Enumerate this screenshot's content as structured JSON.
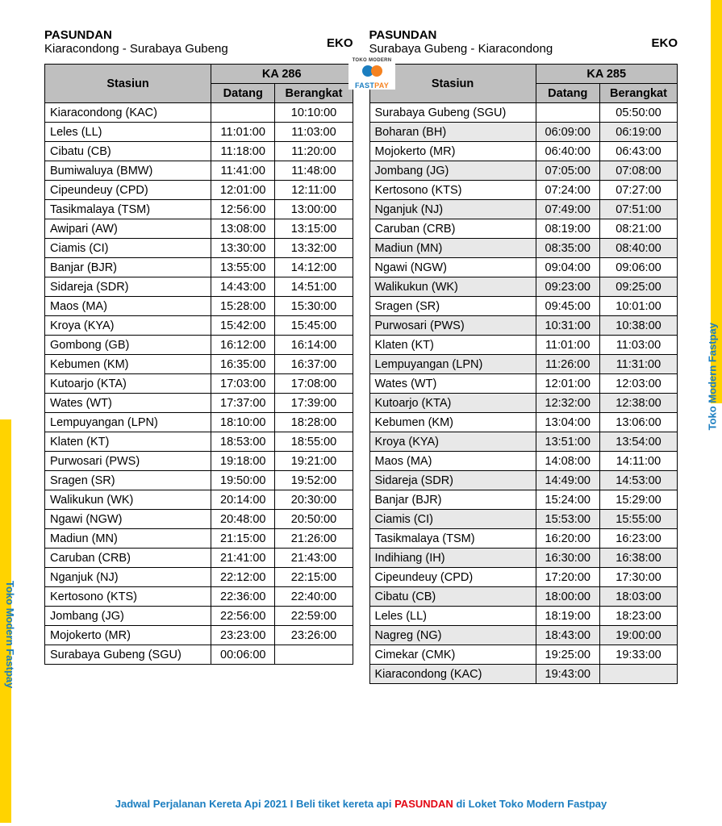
{
  "side_label": "Toko Modern Fastpay",
  "colors": {
    "accent_yellow": "#ffd300",
    "brand_blue": "#1b7ec0",
    "brand_orange": "#f58220",
    "brand_red": "#e30613",
    "header_gray": "#bfbfbf",
    "alt_row": "#e8e8e8",
    "border": "#000000",
    "text": "#000000",
    "background": "#ffffff"
  },
  "logo": {
    "top_text": "TOKO MODERN",
    "name_a": "FAST",
    "name_b": "PAY"
  },
  "headers": {
    "station": "Stasiun",
    "arrive": "Datang",
    "depart": "Berangkat"
  },
  "left": {
    "train_name": "PASUNDAN",
    "route": "Kiaracondong - Surabaya Gubeng",
    "class": "EKO",
    "train_number": "KA 286",
    "rows": [
      {
        "s": "Kiaracondong (KAC)",
        "a": "",
        "d": "10:10:00"
      },
      {
        "s": "Leles (LL)",
        "a": "11:01:00",
        "d": "11:03:00"
      },
      {
        "s": "Cibatu (CB)",
        "a": "11:18:00",
        "d": "11:20:00"
      },
      {
        "s": "Bumiwaluya (BMW)",
        "a": "11:41:00",
        "d": "11:48:00"
      },
      {
        "s": "Cipeundeuy (CPD)",
        "a": "12:01:00",
        "d": "12:11:00"
      },
      {
        "s": "Tasikmalaya (TSM)",
        "a": "12:56:00",
        "d": "13:00:00"
      },
      {
        "s": "Awipari (AW)",
        "a": "13:08:00",
        "d": "13:15:00"
      },
      {
        "s": "Ciamis (CI)",
        "a": "13:30:00",
        "d": "13:32:00"
      },
      {
        "s": "Banjar (BJR)",
        "a": "13:55:00",
        "d": "14:12:00"
      },
      {
        "s": "Sidareja (SDR)",
        "a": "14:43:00",
        "d": "14:51:00"
      },
      {
        "s": "Maos (MA)",
        "a": "15:28:00",
        "d": "15:30:00"
      },
      {
        "s": "Kroya (KYA)",
        "a": "15:42:00",
        "d": "15:45:00"
      },
      {
        "s": "Gombong (GB)",
        "a": "16:12:00",
        "d": "16:14:00"
      },
      {
        "s": "Kebumen (KM)",
        "a": "16:35:00",
        "d": "16:37:00"
      },
      {
        "s": "Kutoarjo (KTA)",
        "a": "17:03:00",
        "d": "17:08:00"
      },
      {
        "s": "Wates (WT)",
        "a": "17:37:00",
        "d": "17:39:00"
      },
      {
        "s": "Lempuyangan (LPN)",
        "a": "18:10:00",
        "d": "18:28:00"
      },
      {
        "s": "Klaten (KT)",
        "a": "18:53:00",
        "d": "18:55:00"
      },
      {
        "s": "Purwosari (PWS)",
        "a": "19:18:00",
        "d": "19:21:00"
      },
      {
        "s": "Sragen (SR)",
        "a": "19:50:00",
        "d": "19:52:00"
      },
      {
        "s": "Walikukun (WK)",
        "a": "20:14:00",
        "d": "20:30:00"
      },
      {
        "s": "Ngawi (NGW)",
        "a": "20:48:00",
        "d": "20:50:00"
      },
      {
        "s": "Madiun (MN)",
        "a": "21:15:00",
        "d": "21:26:00"
      },
      {
        "s": "Caruban (CRB)",
        "a": "21:41:00",
        "d": "21:43:00"
      },
      {
        "s": "Nganjuk (NJ)",
        "a": "22:12:00",
        "d": "22:15:00"
      },
      {
        "s": "Kertosono (KTS)",
        "a": "22:36:00",
        "d": "22:40:00"
      },
      {
        "s": "Jombang (JG)",
        "a": "22:56:00",
        "d": "22:59:00"
      },
      {
        "s": "Mojokerto (MR)",
        "a": "23:23:00",
        "d": "23:26:00"
      },
      {
        "s": "Surabaya Gubeng (SGU)",
        "a": "00:06:00",
        "d": ""
      }
    ]
  },
  "right": {
    "train_name": "PASUNDAN",
    "route": "Surabaya Gubeng - Kiaracondong",
    "class": "EKO",
    "train_number": "KA 285",
    "rows": [
      {
        "s": "Surabaya Gubeng (SGU)",
        "a": "",
        "d": "05:50:00"
      },
      {
        "s": "Boharan (BH)",
        "a": "06:09:00",
        "d": "06:19:00"
      },
      {
        "s": "Mojokerto (MR)",
        "a": "06:40:00",
        "d": "06:43:00"
      },
      {
        "s": "Jombang (JG)",
        "a": "07:05:00",
        "d": "07:08:00"
      },
      {
        "s": "Kertosono (KTS)",
        "a": "07:24:00",
        "d": "07:27:00"
      },
      {
        "s": "Nganjuk (NJ)",
        "a": "07:49:00",
        "d": "07:51:00"
      },
      {
        "s": "Caruban (CRB)",
        "a": "08:19:00",
        "d": "08:21:00"
      },
      {
        "s": "Madiun (MN)",
        "a": "08:35:00",
        "d": "08:40:00"
      },
      {
        "s": "Ngawi (NGW)",
        "a": "09:04:00",
        "d": "09:06:00"
      },
      {
        "s": "Walikukun (WK)",
        "a": "09:23:00",
        "d": "09:25:00"
      },
      {
        "s": "Sragen (SR)",
        "a": "09:45:00",
        "d": "10:01:00"
      },
      {
        "s": "Purwosari (PWS)",
        "a": "10:31:00",
        "d": "10:38:00"
      },
      {
        "s": "Klaten (KT)",
        "a": "11:01:00",
        "d": "11:03:00"
      },
      {
        "s": "Lempuyangan (LPN)",
        "a": "11:26:00",
        "d": "11:31:00"
      },
      {
        "s": "Wates (WT)",
        "a": "12:01:00",
        "d": "12:03:00"
      },
      {
        "s": "Kutoarjo (KTA)",
        "a": "12:32:00",
        "d": "12:38:00"
      },
      {
        "s": "Kebumen (KM)",
        "a": "13:04:00",
        "d": "13:06:00"
      },
      {
        "s": "Kroya (KYA)",
        "a": "13:51:00",
        "d": "13:54:00"
      },
      {
        "s": "Maos (MA)",
        "a": "14:08:00",
        "d": "14:11:00"
      },
      {
        "s": "Sidareja (SDR)",
        "a": "14:49:00",
        "d": "14:53:00"
      },
      {
        "s": "Banjar (BJR)",
        "a": "15:24:00",
        "d": "15:29:00"
      },
      {
        "s": "Ciamis (CI)",
        "a": "15:53:00",
        "d": "15:55:00"
      },
      {
        "s": "Tasikmalaya (TSM)",
        "a": "16:20:00",
        "d": "16:23:00"
      },
      {
        "s": "Indihiang (IH)",
        "a": "16:30:00",
        "d": "16:38:00"
      },
      {
        "s": "Cipeundeuy (CPD)",
        "a": "17:20:00",
        "d": "17:30:00"
      },
      {
        "s": "Cibatu (CB)",
        "a": "18:00:00",
        "d": "18:03:00"
      },
      {
        "s": "Leles (LL)",
        "a": "18:19:00",
        "d": "18:23:00"
      },
      {
        "s": "Nagreg (NG)",
        "a": "18:43:00",
        "d": "19:00:00"
      },
      {
        "s": "Cimekar (CMK)",
        "a": "19:25:00",
        "d": "19:33:00"
      },
      {
        "s": "Kiaracondong (KAC)",
        "a": "19:43:00",
        "d": ""
      }
    ]
  },
  "footer": {
    "part1": "Jadwal Perjalanan Kereta Api 2021 I Beli tiket kereta api ",
    "part2": "PASUNDAN",
    "part3": " di Loket Toko Modern Fastpay"
  }
}
